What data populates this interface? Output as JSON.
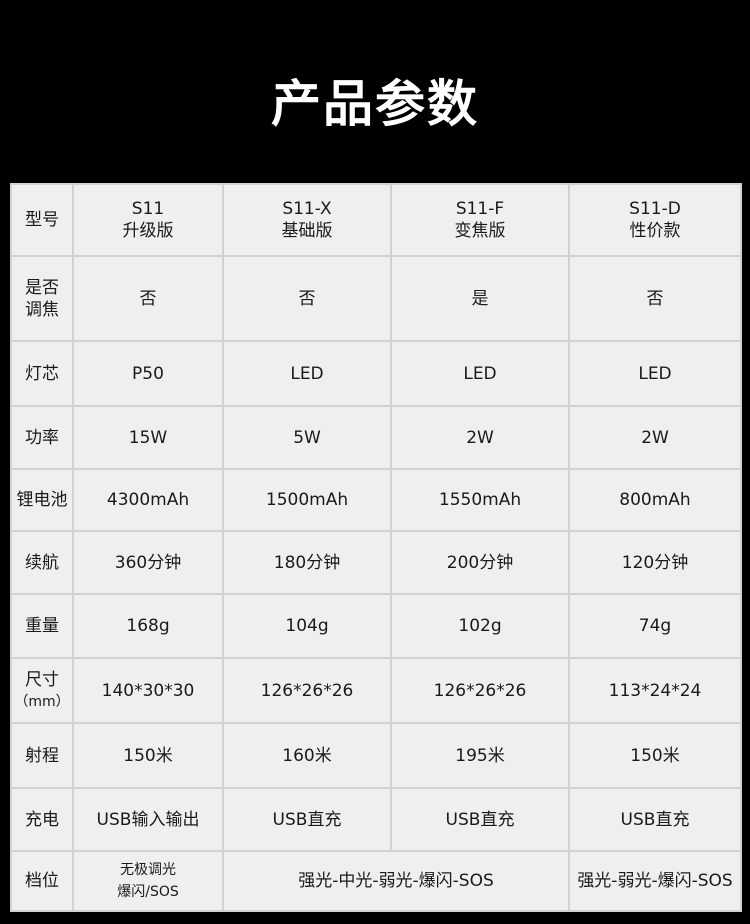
{
  "title": "产品参数",
  "header": {
    "label": "型号",
    "models": [
      {
        "name": "S11",
        "sub": "升级版"
      },
      {
        "name": "S11-X",
        "sub": "基础版"
      },
      {
        "name": "S11-F",
        "sub": "变焦版"
      },
      {
        "name": "S11-D",
        "sub": "性价款"
      }
    ]
  },
  "rows": [
    {
      "label": "是否\n调焦",
      "values": [
        "否",
        "否",
        "是",
        "否"
      ]
    },
    {
      "label": "灯芯",
      "values": [
        "P50",
        "LED",
        "LED",
        "LED"
      ]
    },
    {
      "label": "功率",
      "values": [
        "15W",
        "5W",
        "2W",
        "2W"
      ]
    },
    {
      "label": "锂电池",
      "values": [
        "4300mAh",
        "1500mAh",
        "1550mAh",
        "800mAh"
      ]
    },
    {
      "label": "续航",
      "values": [
        "360分钟",
        "180分钟",
        "200分钟",
        "120分钟"
      ]
    },
    {
      "label": "重量",
      "values": [
        "168g",
        "104g",
        "102g",
        "74g"
      ]
    },
    {
      "label": "尺寸",
      "label_unit": "（mm）",
      "values": [
        "140*30*30",
        "126*26*26",
        "126*26*26",
        "113*24*24"
      ]
    },
    {
      "label": "射程",
      "values": [
        "150米",
        "160米",
        "195米",
        "150米"
      ]
    },
    {
      "label": "充电",
      "values": [
        "USB输入输出",
        "USB直充",
        "USB直充",
        "USB直充"
      ]
    }
  ],
  "modes": {
    "label": "档位",
    "s11_line1": "无极调光",
    "s11_line2": "爆闪/SOS",
    "mid": "强光-中光-弱光-爆闪-SOS",
    "s11d": "强光-弱光-爆闪-SOS"
  }
}
